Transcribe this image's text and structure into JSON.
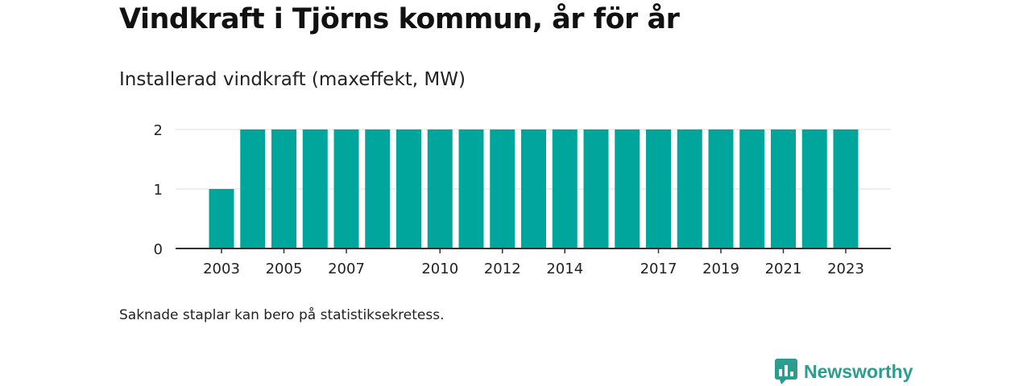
{
  "header": {
    "title": "Vindkraft i Tjörns kommun, år för år"
  },
  "footer": {
    "note": "Saknade staplar kan bero på statistiksekretess.",
    "brand": "Newsworthy"
  },
  "colors": {
    "bar": "#00a59b",
    "grid": "#dcdcdc",
    "axis": "#333333",
    "brand": "#2a9d8f"
  },
  "icons": {
    "brand_logo": "newsworthy-logo-icon"
  },
  "chart_data": {
    "type": "bar",
    "title": "Installerad vindkraft (maxeffekt, MW)",
    "xlabel": "",
    "ylabel": "",
    "categories": [
      "2003",
      "2004",
      "2005",
      "2006",
      "2007",
      "2008",
      "2009",
      "2010",
      "2011",
      "2012",
      "2013",
      "2014",
      "2015",
      "2016",
      "2017",
      "2018",
      "2019",
      "2020",
      "2021",
      "2022",
      "2023"
    ],
    "values": [
      1,
      2,
      2,
      2,
      2,
      2,
      2,
      2,
      2,
      2,
      2,
      2,
      2,
      2,
      2,
      2,
      2,
      2,
      2,
      2,
      2
    ],
    "x_tick_labels": [
      "2003",
      "2005",
      "2007",
      "2010",
      "2012",
      "2014",
      "2017",
      "2019",
      "2021",
      "2023"
    ],
    "y_ticks": [
      0,
      1,
      2
    ],
    "ylim": [
      0,
      2
    ],
    "grid": true,
    "legend": "none"
  }
}
